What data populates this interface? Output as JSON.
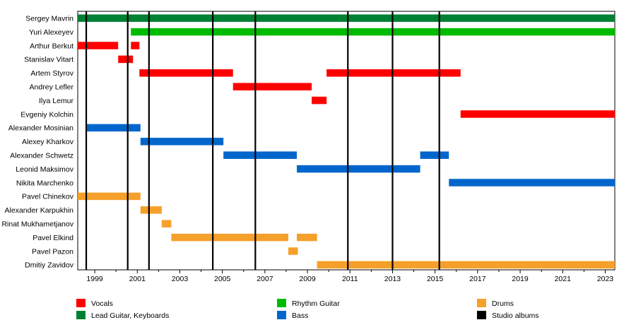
{
  "chart_data": {
    "type": "timeline",
    "x_range": [
      1998.2,
      2023.45
    ],
    "x_ticks": [
      "1999",
      "2001",
      "2003",
      "2005",
      "2007",
      "2009",
      "2011",
      "2013",
      "2015",
      "2017",
      "2019",
      "2021",
      "2023"
    ],
    "roles": [
      {
        "key": "vocals",
        "name": "Vocals",
        "color": "#ff0000"
      },
      {
        "key": "lead",
        "name": "Lead Guitar, Keyboards",
        "color": "#008033"
      },
      {
        "key": "rhythm",
        "name": "Rhythm Guitar",
        "color": "#00bb00"
      },
      {
        "key": "bass",
        "name": "Bass",
        "color": "#0066cc"
      },
      {
        "key": "drums",
        "name": "Drums",
        "color": "#f5a02b"
      },
      {
        "key": "albums",
        "name": "Studio albums",
        "color": "#000000"
      }
    ],
    "members": [
      {
        "name": "Sergey Mavrin",
        "periods": [
          {
            "role": "lead",
            "start": 1998.2,
            "end": 2023.45
          }
        ]
      },
      {
        "name": "Yuri Alexeyev",
        "periods": [
          {
            "role": "rhythm",
            "start": 2000.7,
            "end": 2023.45
          }
        ]
      },
      {
        "name": "Arthur Berkut",
        "periods": [
          {
            "role": "vocals",
            "start": 1998.2,
            "end": 2000.1
          },
          {
            "role": "vocals",
            "start": 2000.7,
            "end": 2001.1
          }
        ]
      },
      {
        "name": "Stanislav Vitart",
        "periods": [
          {
            "role": "vocals",
            "start": 2000.1,
            "end": 2000.8
          }
        ]
      },
      {
        "name": "Artem Styrov",
        "periods": [
          {
            "role": "vocals",
            "start": 2001.1,
            "end": 2005.5
          },
          {
            "role": "vocals",
            "start": 2009.9,
            "end": 2016.2
          }
        ]
      },
      {
        "name": "Andrey Lefler",
        "periods": [
          {
            "role": "vocals",
            "start": 2005.5,
            "end": 2009.2
          }
        ]
      },
      {
        "name": "Ilya Lemur",
        "periods": [
          {
            "role": "vocals",
            "start": 2009.2,
            "end": 2009.9
          }
        ]
      },
      {
        "name": "Evgeniy Kolchin",
        "periods": [
          {
            "role": "vocals",
            "start": 2016.2,
            "end": 2023.45
          }
        ]
      },
      {
        "name": "Alexander Mosinian",
        "periods": [
          {
            "role": "bass",
            "start": 1998.6,
            "end": 2001.15
          }
        ]
      },
      {
        "name": "Alexey Kharkov",
        "periods": [
          {
            "role": "bass",
            "start": 2001.15,
            "end": 2005.05
          }
        ]
      },
      {
        "name": "Alexander Schwetz",
        "periods": [
          {
            "role": "bass",
            "start": 2005.05,
            "end": 2008.5
          },
          {
            "role": "bass",
            "start": 2014.3,
            "end": 2015.65
          }
        ]
      },
      {
        "name": "Leonid Maksimov",
        "periods": [
          {
            "role": "bass",
            "start": 2008.5,
            "end": 2014.3
          }
        ]
      },
      {
        "name": "Nikita Marchenko",
        "periods": [
          {
            "role": "bass",
            "start": 2015.65,
            "end": 2023.45
          }
        ]
      },
      {
        "name": "Pavel Chinekov",
        "periods": [
          {
            "role": "drums",
            "start": 1998.2,
            "end": 2001.15
          }
        ]
      },
      {
        "name": "Alexander Karpukhin",
        "periods": [
          {
            "role": "drums",
            "start": 2001.15,
            "end": 2002.15
          }
        ]
      },
      {
        "name": "Rinat Mukhametjanov",
        "periods": [
          {
            "role": "drums",
            "start": 2002.15,
            "end": 2002.6
          }
        ]
      },
      {
        "name": "Pavel Elkind",
        "periods": [
          {
            "role": "drums",
            "start": 2002.6,
            "end": 2008.1
          },
          {
            "role": "drums",
            "start": 2008.5,
            "end": 2009.45
          }
        ]
      },
      {
        "name": "Pavel Pazon",
        "periods": [
          {
            "role": "drums",
            "start": 2008.1,
            "end": 2008.55
          }
        ]
      },
      {
        "name": "Dmitiy Zavidov",
        "periods": [
          {
            "role": "drums",
            "start": 2009.45,
            "end": 2023.45
          }
        ]
      }
    ],
    "albums": [
      1998.6,
      2000.55,
      2001.55,
      2004.55,
      2006.55,
      2010.9,
      2013.0,
      2015.2
    ],
    "legend_columns": [
      [
        "vocals",
        "lead"
      ],
      [
        "rhythm",
        "bass"
      ],
      [
        "drums",
        "albums"
      ]
    ]
  }
}
